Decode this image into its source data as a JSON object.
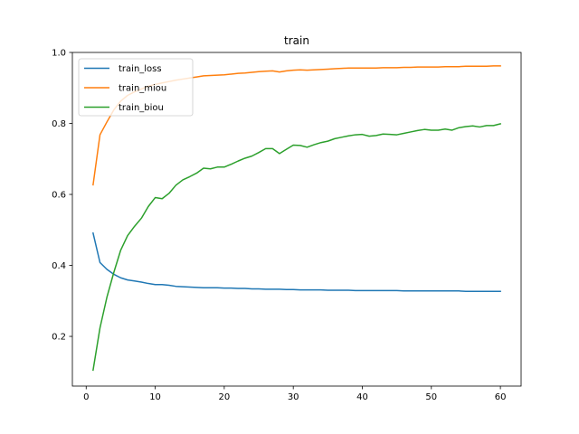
{
  "chart_data": {
    "type": "line",
    "title": "train",
    "xlabel": "",
    "ylabel": "",
    "xlim": [
      -2,
      63
    ],
    "ylim": [
      0.06,
      1.0
    ],
    "xticks": [
      0,
      10,
      20,
      30,
      40,
      50,
      60
    ],
    "yticks": [
      0.2,
      0.4,
      0.6,
      0.8,
      1.0
    ],
    "ytick_labels": [
      "0.2",
      "0.4",
      "0.6",
      "0.8",
      "1.0"
    ],
    "grid": false,
    "legend_position": "upper-left",
    "x": [
      1,
      2,
      3,
      4,
      5,
      6,
      7,
      8,
      9,
      10,
      11,
      12,
      13,
      14,
      15,
      16,
      17,
      18,
      19,
      20,
      21,
      22,
      23,
      24,
      25,
      26,
      27,
      28,
      29,
      30,
      31,
      32,
      33,
      34,
      35,
      36,
      37,
      38,
      39,
      40,
      41,
      42,
      43,
      44,
      45,
      46,
      47,
      48,
      49,
      50,
      51,
      52,
      53,
      54,
      55,
      56,
      57,
      58,
      59,
      60
    ],
    "series": [
      {
        "name": "train_loss",
        "color": "#1f77b4",
        "values": [
          0.491,
          0.408,
          0.389,
          0.375,
          0.365,
          0.359,
          0.356,
          0.353,
          0.349,
          0.346,
          0.346,
          0.344,
          0.341,
          0.34,
          0.339,
          0.338,
          0.337,
          0.337,
          0.337,
          0.336,
          0.336,
          0.335,
          0.335,
          0.334,
          0.334,
          0.333,
          0.333,
          0.333,
          0.332,
          0.332,
          0.331,
          0.331,
          0.331,
          0.331,
          0.33,
          0.33,
          0.33,
          0.33,
          0.329,
          0.329,
          0.329,
          0.329,
          0.329,
          0.329,
          0.329,
          0.328,
          0.328,
          0.328,
          0.328,
          0.328,
          0.328,
          0.328,
          0.328,
          0.328,
          0.327,
          0.327,
          0.327,
          0.327,
          0.327,
          0.327
        ]
      },
      {
        "name": "train_miou",
        "color": "#ff7f0e",
        "values": [
          0.627,
          0.768,
          0.804,
          0.838,
          0.863,
          0.879,
          0.889,
          0.897,
          0.905,
          0.91,
          0.914,
          0.918,
          0.922,
          0.925,
          0.928,
          0.931,
          0.934,
          0.935,
          0.936,
          0.937,
          0.939,
          0.941,
          0.942,
          0.944,
          0.946,
          0.947,
          0.948,
          0.945,
          0.948,
          0.95,
          0.951,
          0.95,
          0.951,
          0.952,
          0.953,
          0.954,
          0.955,
          0.956,
          0.956,
          0.956,
          0.956,
          0.956,
          0.957,
          0.957,
          0.957,
          0.958,
          0.958,
          0.959,
          0.959,
          0.959,
          0.959,
          0.96,
          0.96,
          0.96,
          0.961,
          0.961,
          0.961,
          0.961,
          0.962,
          0.962
        ]
      },
      {
        "name": "train_biou",
        "color": "#2ca02c",
        "values": [
          0.105,
          0.224,
          0.31,
          0.38,
          0.443,
          0.484,
          0.51,
          0.533,
          0.566,
          0.591,
          0.588,
          0.603,
          0.626,
          0.641,
          0.65,
          0.66,
          0.674,
          0.672,
          0.677,
          0.677,
          0.685,
          0.694,
          0.702,
          0.708,
          0.718,
          0.729,
          0.729,
          0.715,
          0.727,
          0.739,
          0.738,
          0.733,
          0.74,
          0.746,
          0.75,
          0.757,
          0.761,
          0.765,
          0.768,
          0.769,
          0.764,
          0.766,
          0.77,
          0.769,
          0.768,
          0.772,
          0.776,
          0.78,
          0.783,
          0.781,
          0.781,
          0.784,
          0.781,
          0.788,
          0.791,
          0.793,
          0.79,
          0.794,
          0.794,
          0.799
        ]
      }
    ]
  }
}
